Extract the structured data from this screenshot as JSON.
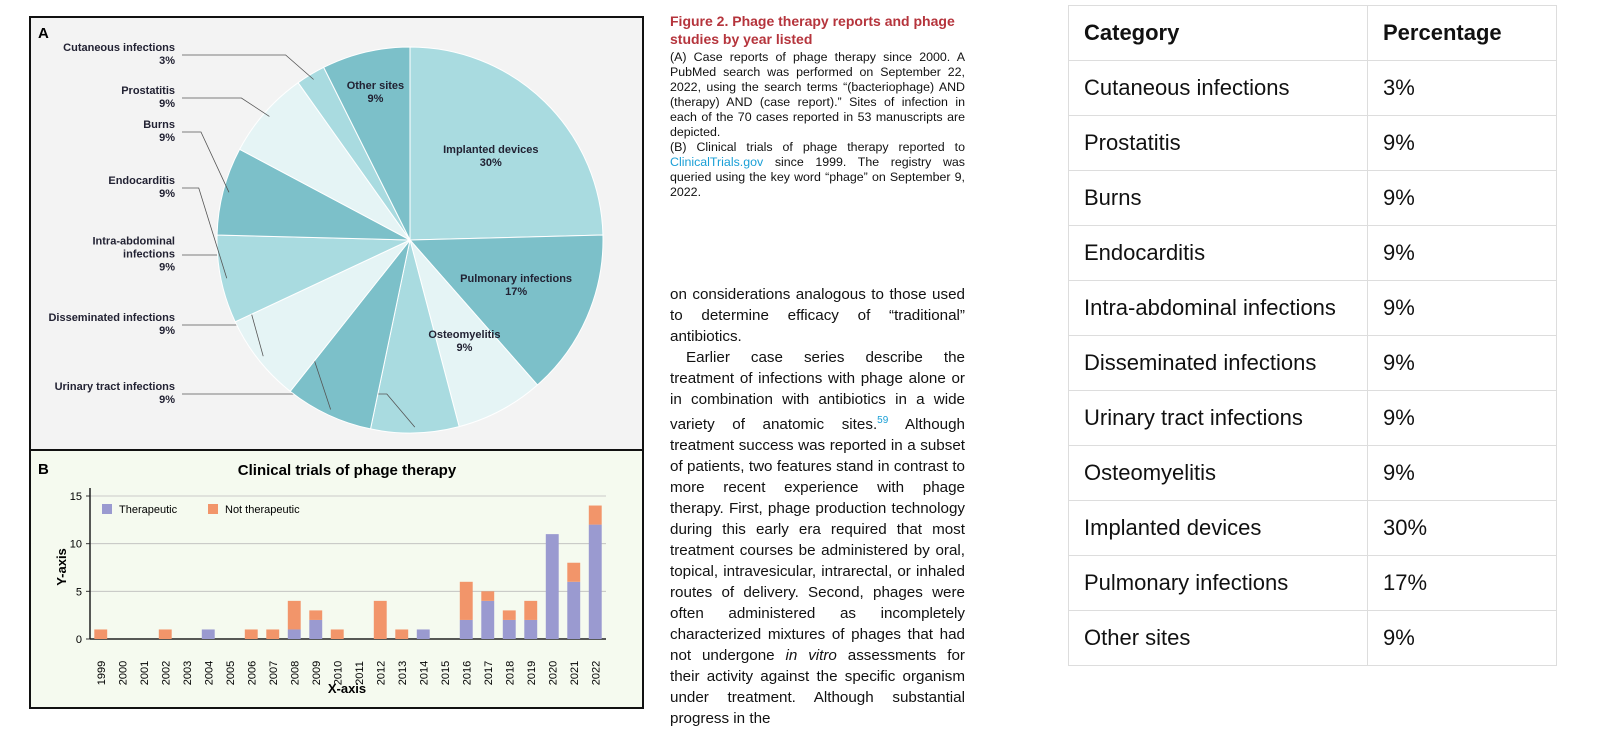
{
  "chart_data": [
    {
      "type": "pie",
      "panel": "A",
      "categories": [
        "Implanted devices",
        "Pulmonary infections",
        "Osteomyelitis",
        "Urinary tract infections",
        "Disseminated infections",
        "Intra-abdominal infections",
        "Endocarditis",
        "Burns",
        "Prostatitis",
        "Cutaneous infections",
        "Other sites"
      ],
      "values": [
        30,
        17,
        9,
        9,
        9,
        9,
        9,
        9,
        9,
        3,
        9
      ],
      "value_labels": [
        "30%",
        "17%",
        "9%",
        "9%",
        "9%",
        "9%",
        "9%",
        "9%",
        "9%",
        "3%",
        "9%"
      ],
      "colors": [
        "#a9dbe0",
        "#7cc0c9",
        "#e5f4f5",
        "#a9dbe0",
        "#7cc0c9",
        "#e5f4f5",
        "#a9dbe0",
        "#7cc0c9",
        "#e5f4f5",
        "#a9dbe0",
        "#7cc0c9"
      ]
    },
    {
      "type": "bar",
      "stacked": true,
      "panel": "B",
      "title": "Clinical trials of phage therapy",
      "x_label": "X-axis",
      "y_label": "Y-axis",
      "categories": [
        "1999",
        "2000",
        "2001",
        "2002",
        "2003",
        "2004",
        "2005",
        "2006",
        "2007",
        "2008",
        "2009",
        "2010",
        "2011",
        "2012",
        "2013",
        "2014",
        "2015",
        "2016",
        "2017",
        "2018",
        "2019",
        "2020",
        "2021",
        "2022"
      ],
      "series": [
        {
          "name": "Therapeutic",
          "color": "#9a9ad0",
          "values": [
            0,
            0,
            0,
            0,
            0,
            1,
            0,
            0,
            0,
            1,
            2,
            0,
            0,
            0,
            0,
            1,
            0,
            2,
            4,
            2,
            2,
            11,
            6,
            12
          ]
        },
        {
          "name": "Not therapeutic",
          "color": "#f2956a",
          "values": [
            1,
            0,
            0,
            1,
            0,
            0,
            0,
            1,
            1,
            3,
            1,
            1,
            0,
            4,
            1,
            0,
            0,
            4,
            1,
            1,
            2,
            0,
            2,
            2
          ]
        }
      ],
      "ylim": [
        0,
        15
      ],
      "yticks": [
        0,
        5,
        10,
        15
      ],
      "grid": true,
      "legend": "upper left"
    }
  ],
  "caption": {
    "title": "Figure 2. Phage therapy reports and phage studies by year listed",
    "para_a": "(A) Case reports of phage therapy since 2000. A PubMed search was performed on September 22, 2022, using the search terms “(bacteriophage) AND (therapy) AND (case report).” Sites of infection in each of the 70 cases reported in 53 manuscripts are depicted.",
    "para_b_start": "(B) Clinical trials of phage therapy reported to",
    "para_b_link": "ClinicalTrials.gov",
    "para_b_end": "since 1999. The registry was queried using the key word “phage” on September 9, 2022."
  },
  "body": {
    "para_1": "on considerations analogous to those used to determine efficacy of “traditional” antibiotics.",
    "para_2_start": "Earlier case series describe the treatment of infections with phage alone or in combination with antibiotics in a wide variety of anatomic sites.",
    "para_2_ref": "59",
    "para_2_mid": "Although treatment success was reported in a subset of patients, two features stand in contrast to more recent experience with phage therapy. First, phage production technology during this early era required that most treatment courses be administered by oral, topical, intravesicular, intrarectal, or inhaled routes of delivery. Second, phages were often administered as incompletely characterized mixtures of phages that had not undergone",
    "para_2_italic": "in vitro",
    "para_2_end": "assessments for their activity against the specific organism under treatment. Although substantial progress in the"
  },
  "table": {
    "header": [
      "Category",
      "Percentage"
    ],
    "rows": [
      [
        "Cutaneous infections",
        "3%"
      ],
      [
        "Prostatitis",
        "9%"
      ],
      [
        "Burns",
        "9%"
      ],
      [
        "Endocarditis",
        "9%"
      ],
      [
        "Intra-abdominal infections",
        "9%"
      ],
      [
        "Disseminated infections",
        "9%"
      ],
      [
        "Urinary tract infections",
        "9%"
      ],
      [
        "Osteomyelitis",
        "9%"
      ],
      [
        "Implanted devices",
        "30%"
      ],
      [
        "Pulmonary infections",
        "17%"
      ],
      [
        "Other sites",
        "9%"
      ]
    ]
  }
}
